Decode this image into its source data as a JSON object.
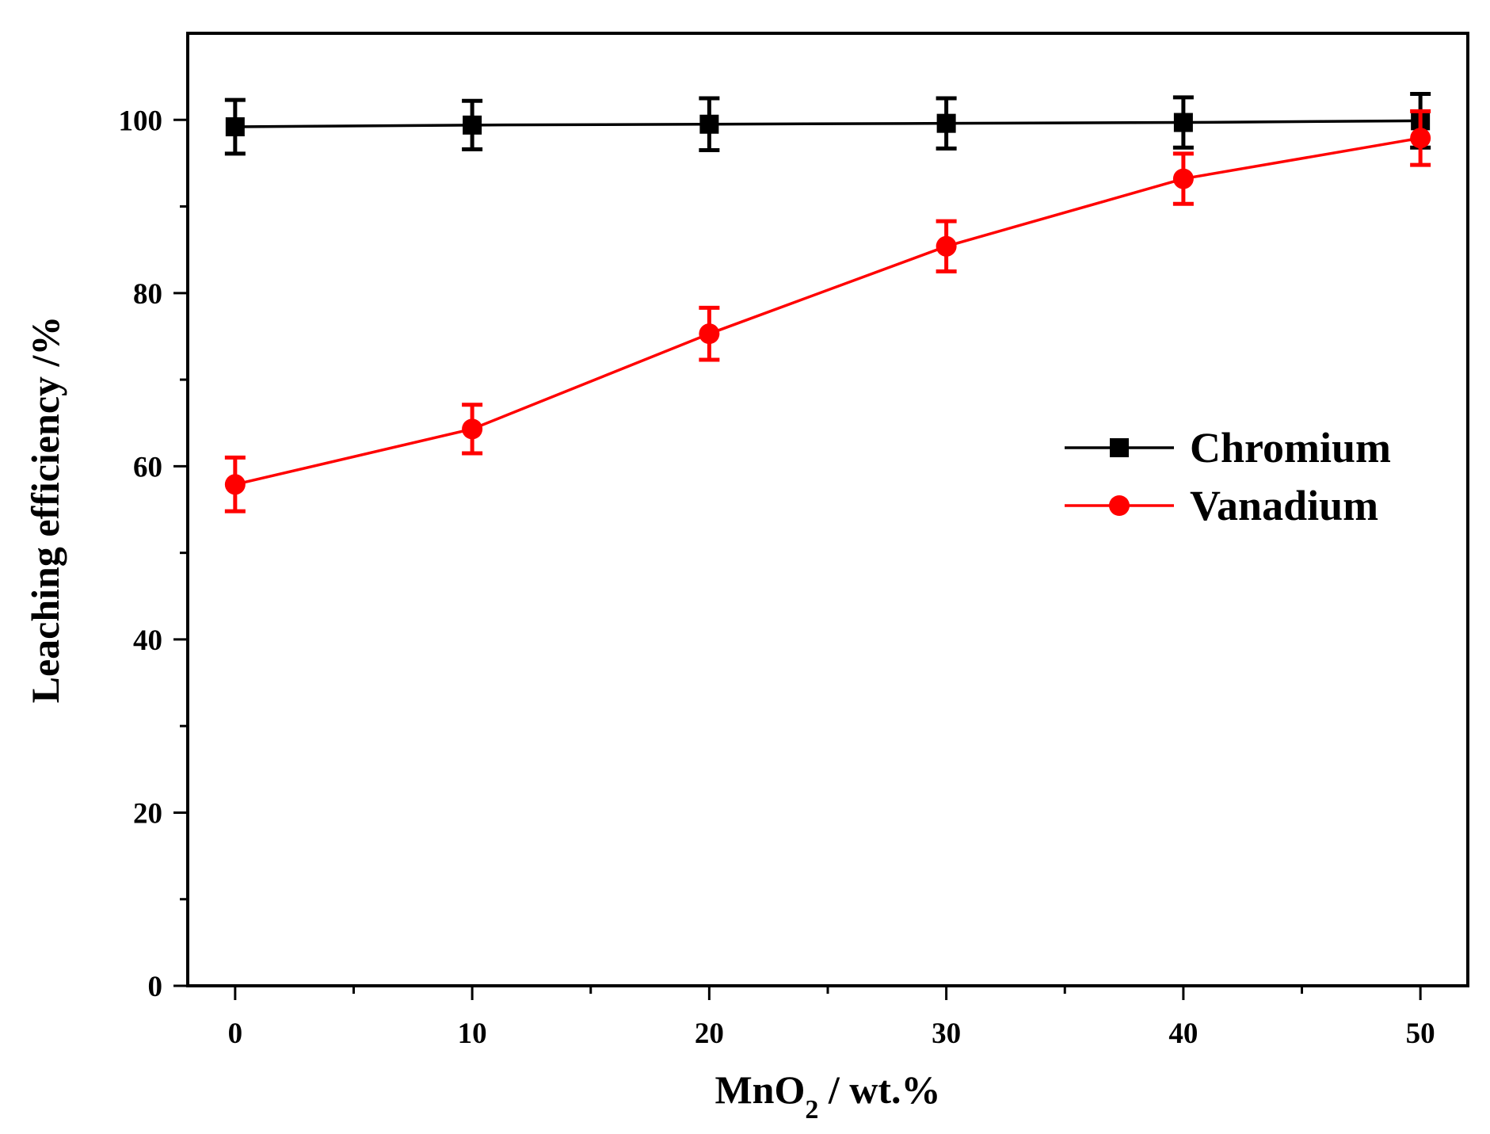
{
  "chart_data": {
    "type": "line",
    "title": "",
    "xlabel": {
      "base": "MnO",
      "sub": "2",
      "suffix": " / wt.%"
    },
    "ylabel": "Leaching efficiency /%",
    "xlim": [
      -2,
      52
    ],
    "ylim": [
      0,
      110
    ],
    "x_ticks": [
      0,
      10,
      20,
      30,
      40,
      50
    ],
    "x_tick_labels": [
      "0",
      "10",
      "20",
      "30",
      "40",
      "50"
    ],
    "x_minor_ticks": [
      5,
      15,
      25,
      35,
      45
    ],
    "y_ticks": [
      0,
      20,
      40,
      60,
      80,
      100
    ],
    "y_tick_labels": [
      "0",
      "20",
      "40",
      "60",
      "80",
      "100"
    ],
    "y_minor_ticks": [
      10,
      30,
      50,
      70,
      90
    ],
    "legend_position": "right",
    "series": [
      {
        "name": "Chromium",
        "color": "#000000",
        "marker": "square",
        "x": [
          0,
          10,
          20,
          30,
          40,
          50
        ],
        "y": [
          99.2,
          99.4,
          99.5,
          99.6,
          99.7,
          99.9
        ],
        "error": [
          3.1,
          2.8,
          3.0,
          2.9,
          2.9,
          3.1
        ]
      },
      {
        "name": "Vanadium",
        "color": "#ff0000",
        "marker": "circle",
        "x": [
          0,
          10,
          20,
          30,
          40,
          50
        ],
        "y": [
          57.9,
          64.3,
          75.3,
          85.4,
          93.2,
          97.9
        ],
        "error": [
          3.1,
          2.8,
          3.0,
          2.9,
          2.9,
          3.1
        ]
      }
    ]
  }
}
